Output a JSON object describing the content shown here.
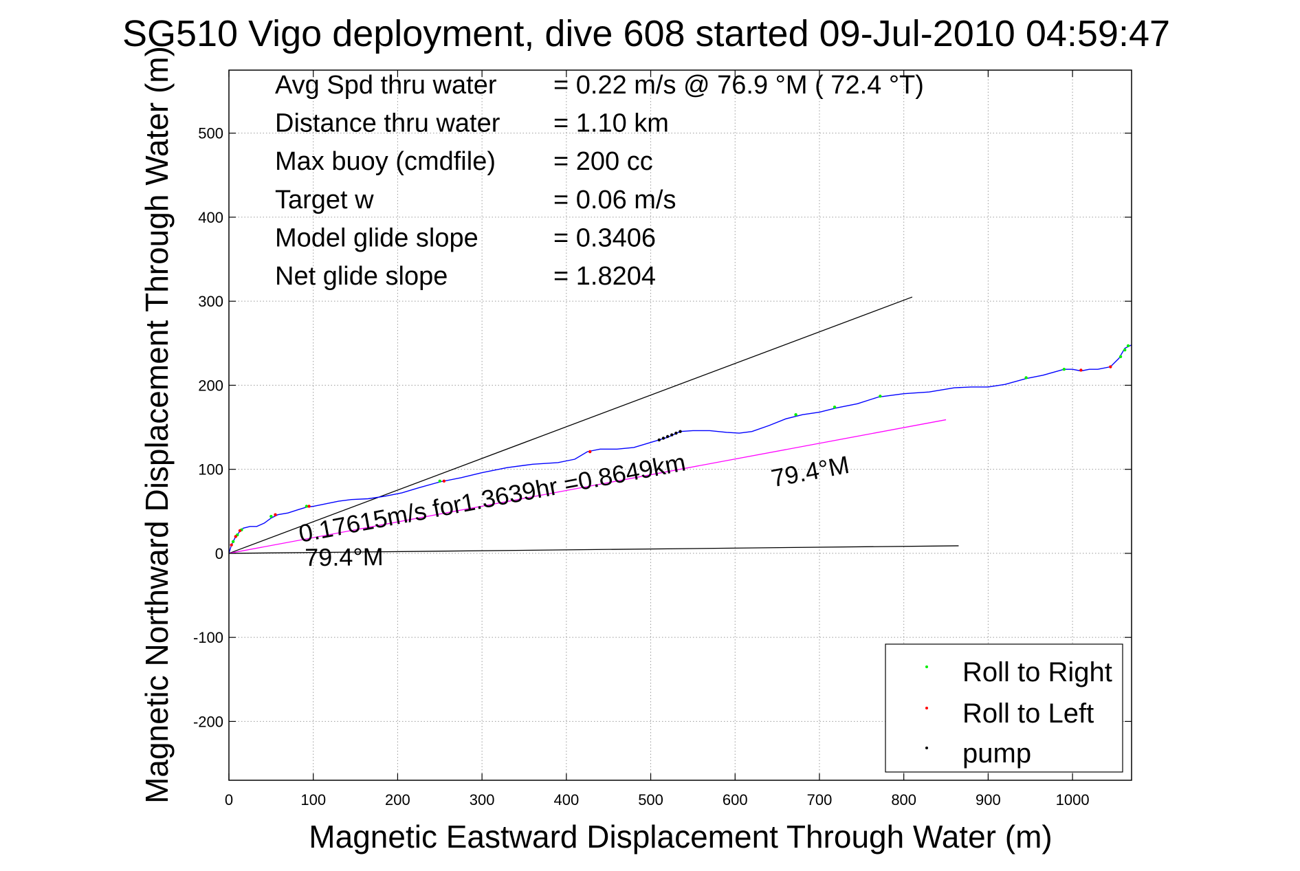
{
  "chart_data": {
    "type": "line",
    "title": "SG510 Vigo deployment, dive 608 started 09-Jul-2010 04:59:47",
    "xlabel": "Magnetic Eastward Displacement Through Water (m)",
    "ylabel": "Magnetic Northward Displacement Through Water (m)",
    "xlim": [
      0,
      1070
    ],
    "ylim": [
      -270,
      575
    ],
    "xticks": [
      0,
      100,
      200,
      300,
      400,
      500,
      600,
      700,
      800,
      900,
      1000
    ],
    "yticks": [
      -200,
      -100,
      0,
      100,
      200,
      300,
      400,
      500
    ],
    "grid": true,
    "legend_position": "bottom-right",
    "stats": [
      {
        "label": "Avg Spd thru water",
        "value": "=  0.22 m/s @  76.9 °M ( 72.4 °T)"
      },
      {
        "label": "Distance thru water",
        "value": "=  1.10 km"
      },
      {
        "label": "Max buoy (cmdfile)",
        "value": "= 200 cc"
      },
      {
        "label": "Target w",
        "value": "= 0.06 m/s"
      },
      {
        "label": "Model glide slope",
        "value": "= 0.3406"
      },
      {
        "label": "Net glide slope",
        "value": "= 1.8204"
      }
    ],
    "reference_lines": [
      {
        "color": "#000000",
        "x": [
          0,
          810
        ],
        "y": [
          0,
          305
        ]
      },
      {
        "color": "#000000",
        "x": [
          0,
          865
        ],
        "y": [
          0,
          9
        ]
      },
      {
        "color": "#ff00ff",
        "x": [
          0,
          850
        ],
        "y": [
          0,
          159
        ]
      }
    ],
    "annotations": [
      {
        "text": "0.17615m/s for1.3639hr =0.8649km",
        "x": 85,
        "y": 13,
        "angle_deg": 10.6
      },
      {
        "text": "79.4°M",
        "x": 645,
        "y": 79,
        "angle_deg": 10.6
      },
      {
        "text": "79.4°M",
        "x": 90,
        "y": -15,
        "angle_deg": 0.6
      }
    ],
    "track": {
      "name": "",
      "color": "#0000ff",
      "x": [
        0,
        3,
        7,
        12,
        17,
        25,
        33,
        42,
        50,
        58,
        70,
        82,
        92,
        100,
        115,
        130,
        145,
        165,
        185,
        205,
        225,
        250,
        275,
        300,
        330,
        360,
        390,
        410,
        425,
        440,
        460,
        480,
        500,
        520,
        535,
        550,
        570,
        590,
        605,
        620,
        640,
        660,
        680,
        700,
        720,
        745,
        770,
        800,
        830,
        860,
        880,
        900,
        920,
        945,
        965,
        990,
        1000,
        1010,
        1020,
        1030,
        1045,
        1055,
        1062,
        1070
      ],
      "y": [
        0,
        10,
        18,
        25,
        30,
        32,
        32,
        36,
        42,
        46,
        48,
        52,
        55,
        56,
        59,
        62,
        64,
        65,
        68,
        72,
        78,
        85,
        90,
        96,
        102,
        106,
        108,
        112,
        121,
        124,
        124,
        126,
        132,
        138,
        145,
        146,
        146,
        144,
        143,
        145,
        152,
        160,
        165,
        168,
        173,
        178,
        186,
        190,
        192,
        197,
        198,
        198,
        201,
        208,
        212,
        219,
        219,
        217,
        219,
        219,
        222,
        232,
        244,
        248
      ]
    },
    "markers": [
      {
        "name": "Roll to Right",
        "color": "#00ee00",
        "x": [
          5,
          10,
          15,
          50,
          92,
          250,
          672,
          718,
          772,
          945,
          990,
          1057,
          1062,
          1066
        ],
        "y": [
          14,
          22,
          28,
          44,
          56,
          86,
          165,
          174,
          187,
          209,
          219,
          234,
          242,
          247
        ]
      },
      {
        "name": "Roll to Left",
        "color": "#ff0000",
        "x": [
          3,
          8,
          13,
          55,
          95,
          255,
          428,
          1010,
          1045
        ],
        "y": [
          10,
          20,
          27,
          46,
          56,
          86,
          121,
          218,
          222
        ]
      },
      {
        "name": "pump",
        "color": "#000000",
        "x": [
          510,
          515,
          520,
          525,
          530,
          535
        ],
        "y": [
          135,
          137,
          139,
          141,
          143,
          145
        ]
      }
    ]
  }
}
